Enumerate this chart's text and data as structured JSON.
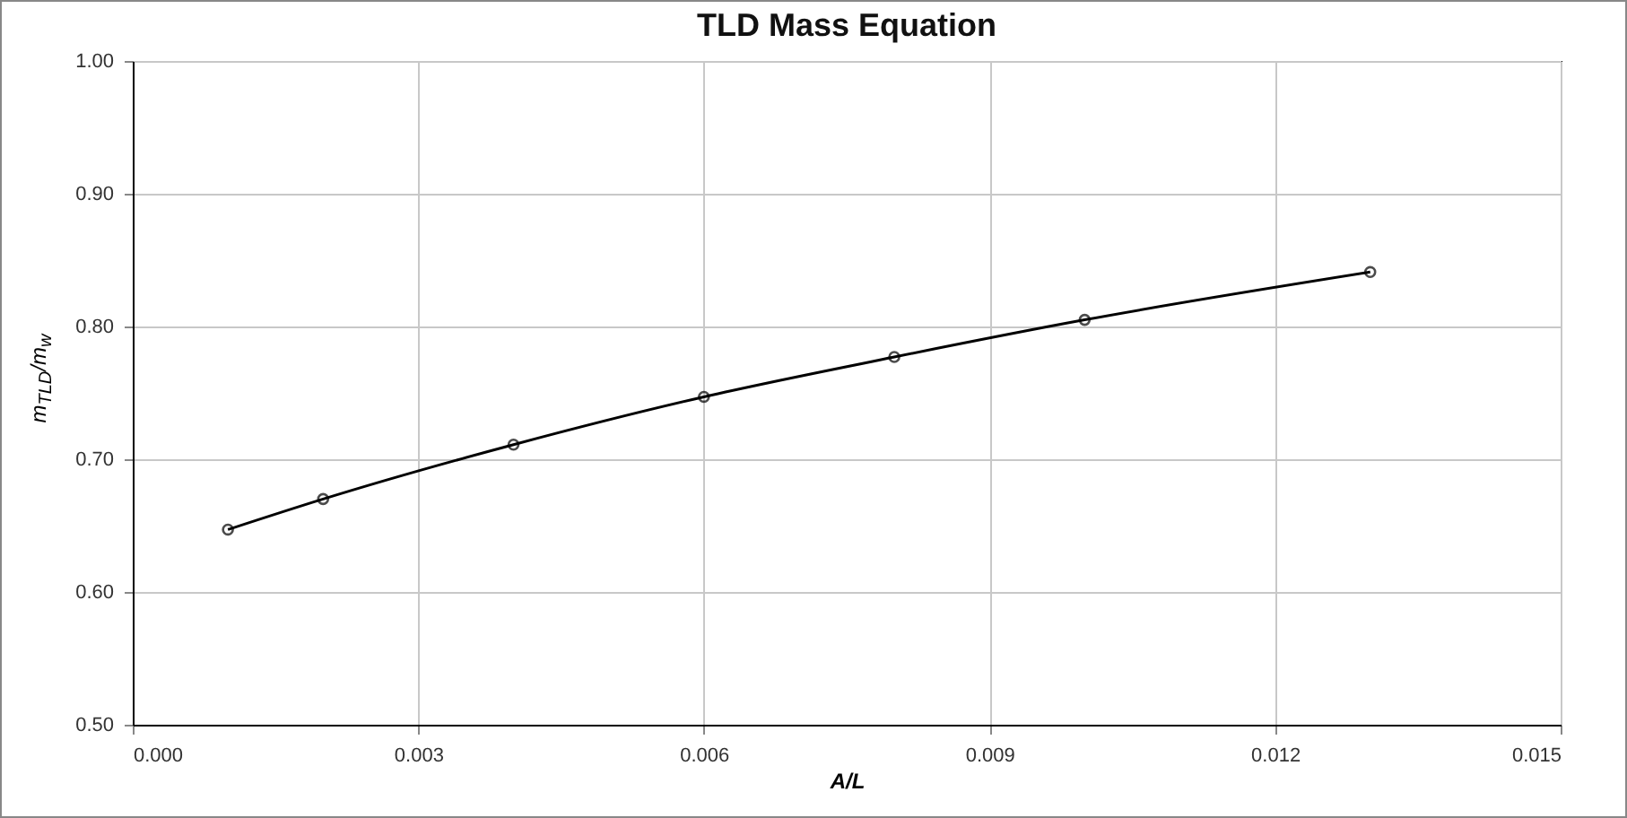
{
  "chart_data": {
    "type": "line",
    "title": "TLD Mass Equation",
    "xlabel": "A/L",
    "ylabel": "m$_{TLD}$/m$_{w}$",
    "x": [
      0.001,
      0.002,
      0.004,
      0.006,
      0.008,
      0.01,
      0.013
    ],
    "series": [
      {
        "color": "#000000",
        "values": [
          0.647,
          0.67,
          0.711,
          0.747,
          0.777,
          0.805,
          0.841
        ]
      }
    ],
    "xlim": [
      0,
      0.015
    ],
    "xticks": [
      {
        "value": 0,
        "label": "0.000"
      },
      {
        "value": 0.003,
        "label": "0.003"
      },
      {
        "value": 0.006,
        "label": "0.006"
      },
      {
        "value": 0.009,
        "label": "0.009"
      },
      {
        "value": 0.012,
        "label": "0.012"
      },
      {
        "value": 0.015,
        "label": "0.015"
      }
    ],
    "ylim": [
      0.5,
      1.0
    ],
    "yticks": [
      {
        "value": 0.5,
        "label": "0.50"
      },
      {
        "value": 0.6,
        "label": "0.60"
      },
      {
        "value": 0.7,
        "label": "0.70"
      },
      {
        "value": 0.8,
        "label": "0.80"
      },
      {
        "value": 0.9,
        "label": "0.90"
      },
      {
        "value": 1.0,
        "label": "1.00"
      }
    ],
    "grid": true,
    "marker": "circle",
    "line_style": "solid"
  }
}
